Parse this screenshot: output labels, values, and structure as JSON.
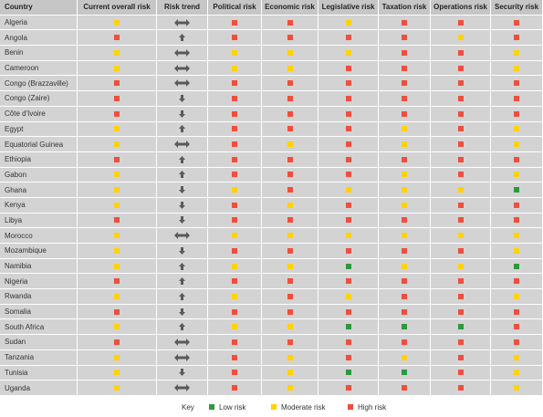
{
  "headers": [
    "Country",
    "Current overall risk",
    "Risk trend",
    "Political risk",
    "Economic risk",
    "Legislative risk",
    "Taxation risk",
    "Operations risk",
    "Security risk"
  ],
  "rows": [
    {
      "country": "Algeria",
      "overall": "yellow",
      "trend": "stable",
      "political": "red",
      "economic": "red",
      "legislative": "yellow",
      "taxation": "red",
      "operations": "red",
      "security": "red"
    },
    {
      "country": "Angola",
      "overall": "red",
      "trend": "up",
      "political": "red",
      "economic": "red",
      "legislative": "red",
      "taxation": "red",
      "operations": "yellow",
      "security": "red"
    },
    {
      "country": "Benin",
      "overall": "yellow",
      "trend": "stable",
      "political": "yellow",
      "economic": "yellow",
      "legislative": "yellow",
      "taxation": "red",
      "operations": "red",
      "security": "yellow"
    },
    {
      "country": "Cameroon",
      "overall": "yellow",
      "trend": "stable",
      "political": "yellow",
      "economic": "yellow",
      "legislative": "red",
      "taxation": "red",
      "operations": "red",
      "security": "yellow"
    },
    {
      "country": "Congo (Brazzaville)",
      "overall": "red",
      "trend": "stable",
      "political": "red",
      "economic": "red",
      "legislative": "red",
      "taxation": "red",
      "operations": "red",
      "security": "red"
    },
    {
      "country": "Congo (Zaire)",
      "overall": "red",
      "trend": "down",
      "political": "red",
      "economic": "red",
      "legislative": "red",
      "taxation": "red",
      "operations": "red",
      "security": "red"
    },
    {
      "country": "Côte d'Ivoire",
      "overall": "red",
      "trend": "down",
      "political": "red",
      "economic": "red",
      "legislative": "red",
      "taxation": "red",
      "operations": "red",
      "security": "red"
    },
    {
      "country": "Egypt",
      "overall": "yellow",
      "trend": "up",
      "political": "red",
      "economic": "red",
      "legislative": "red",
      "taxation": "yellow",
      "operations": "red",
      "security": "yellow"
    },
    {
      "country": "Equatorial Guinea",
      "overall": "yellow",
      "trend": "stable",
      "political": "red",
      "economic": "yellow",
      "legislative": "red",
      "taxation": "yellow",
      "operations": "red",
      "security": "yellow"
    },
    {
      "country": "Ethiopia",
      "overall": "red",
      "trend": "up",
      "political": "red",
      "economic": "red",
      "legislative": "red",
      "taxation": "red",
      "operations": "red",
      "security": "red"
    },
    {
      "country": "Gabon",
      "overall": "yellow",
      "trend": "up",
      "political": "red",
      "economic": "red",
      "legislative": "red",
      "taxation": "yellow",
      "operations": "red",
      "security": "yellow"
    },
    {
      "country": "Ghana",
      "overall": "yellow",
      "trend": "down",
      "political": "yellow",
      "economic": "red",
      "legislative": "yellow",
      "taxation": "yellow",
      "operations": "yellow",
      "security": "green"
    },
    {
      "country": "Kenya",
      "overall": "yellow",
      "trend": "down",
      "political": "red",
      "economic": "yellow",
      "legislative": "red",
      "taxation": "yellow",
      "operations": "red",
      "security": "red"
    },
    {
      "country": "Libya",
      "overall": "red",
      "trend": "down",
      "political": "red",
      "economic": "red",
      "legislative": "red",
      "taxation": "red",
      "operations": "red",
      "security": "red"
    },
    {
      "country": "Morocco",
      "overall": "yellow",
      "trend": "stable",
      "political": "yellow",
      "economic": "yellow",
      "legislative": "yellow",
      "taxation": "yellow",
      "operations": "yellow",
      "security": "yellow"
    },
    {
      "country": "Mozambique",
      "overall": "yellow",
      "trend": "down",
      "political": "red",
      "economic": "red",
      "legislative": "red",
      "taxation": "red",
      "operations": "red",
      "security": "yellow"
    },
    {
      "country": "Namibia",
      "overall": "yellow",
      "trend": "up",
      "political": "yellow",
      "economic": "yellow",
      "legislative": "green",
      "taxation": "yellow",
      "operations": "yellow",
      "security": "green"
    },
    {
      "country": "Nigeria",
      "overall": "red",
      "trend": "up",
      "political": "red",
      "economic": "red",
      "legislative": "red",
      "taxation": "red",
      "operations": "red",
      "security": "red"
    },
    {
      "country": "Rwanda",
      "overall": "yellow",
      "trend": "up",
      "political": "yellow",
      "economic": "red",
      "legislative": "yellow",
      "taxation": "red",
      "operations": "red",
      "security": "yellow"
    },
    {
      "country": "Somalia",
      "overall": "red",
      "trend": "down",
      "political": "red",
      "economic": "red",
      "legislative": "red",
      "taxation": "red",
      "operations": "red",
      "security": "red"
    },
    {
      "country": "South Africa",
      "overall": "yellow",
      "trend": "up",
      "political": "yellow",
      "economic": "yellow",
      "legislative": "green",
      "taxation": "green",
      "operations": "green",
      "security": "red"
    },
    {
      "country": "Sudan",
      "overall": "red",
      "trend": "stable",
      "political": "red",
      "economic": "red",
      "legislative": "red",
      "taxation": "red",
      "operations": "red",
      "security": "red"
    },
    {
      "country": "Tanzania",
      "overall": "yellow",
      "trend": "stable",
      "political": "red",
      "economic": "yellow",
      "legislative": "red",
      "taxation": "yellow",
      "operations": "red",
      "security": "yellow"
    },
    {
      "country": "Tunisia",
      "overall": "yellow",
      "trend": "down",
      "political": "red",
      "economic": "yellow",
      "legislative": "green",
      "taxation": "green",
      "operations": "red",
      "security": "yellow"
    },
    {
      "country": "Uganda",
      "overall": "yellow",
      "trend": "stable",
      "political": "red",
      "economic": "yellow",
      "legislative": "red",
      "taxation": "red",
      "operations": "red",
      "security": "yellow"
    }
  ],
  "key": {
    "title": "Key",
    "low": "Low risk",
    "moderate": "Moderate risk",
    "high": "High risk"
  },
  "colors": {
    "red": "#f04e3e",
    "yellow": "#ffd200",
    "green": "#2b9a3c",
    "arrow": "#5a5a5a"
  }
}
